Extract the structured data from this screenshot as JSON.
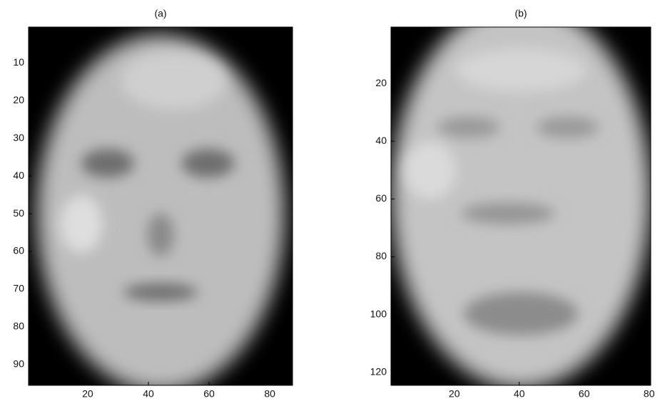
{
  "chart_data": [
    {
      "type": "image",
      "title": "(a)",
      "xlim": [
        0.5,
        87.5
      ],
      "ylim": [
        0.5,
        95.5
      ],
      "y_reversed": true,
      "xticks": [
        20,
        40,
        60,
        80
      ],
      "yticks": [
        10,
        20,
        30,
        40,
        50,
        60,
        70,
        80,
        90
      ]
    },
    {
      "type": "image",
      "title": "(b)",
      "xlim": [
        0.5,
        80.5
      ],
      "ylim": [
        0.5,
        124.5
      ],
      "y_reversed": true,
      "xticks": [
        20,
        40,
        60,
        80
      ],
      "yticks": [
        20,
        40,
        60,
        80,
        100,
        120
      ]
    }
  ]
}
